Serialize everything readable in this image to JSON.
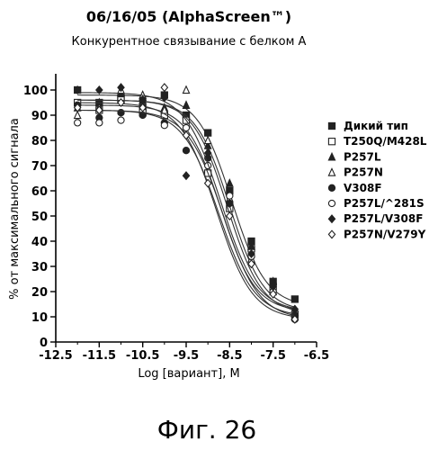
{
  "chart_data": {
    "type": "scatter",
    "title": "06/16/05 (AlphaScreen™)",
    "subtitle": "Конкурентное связывание с белком А",
    "xlabel": "Log [вариант], M",
    "ylabel": "% от максимального сигнала",
    "xlim": [
      -12.5,
      -6.5
    ],
    "ylim": [
      0,
      105
    ],
    "xticks": [
      -12.5,
      -11.5,
      -10.5,
      -9.5,
      -8.5,
      -7.5,
      -6.5
    ],
    "xtick_labels": [
      "-12.5",
      "-11.5",
      "-10.5",
      "-9.5",
      "-8.5",
      "-7.5",
      "-6.5"
    ],
    "yticks": [
      0,
      10,
      20,
      30,
      40,
      50,
      60,
      70,
      80,
      90,
      100
    ],
    "ytick_labels": [
      "0",
      "10",
      "20",
      "30",
      "40",
      "50",
      "60",
      "70",
      "80",
      "90",
      "100"
    ],
    "legend_position": "right",
    "caption": "Фиг. 26",
    "series": [
      {
        "name": "Дикий тип",
        "marker": "square-filled",
        "x": [
          -12,
          -11.5,
          -11,
          -10.5,
          -10,
          -9.5,
          -9,
          -8.5,
          -8,
          -7.5,
          -7
        ],
        "y": [
          100,
          95,
          97,
          93,
          98,
          90,
          83,
          60,
          40,
          24,
          17
        ],
        "fit": {
          "top": 98,
          "bottom": 14,
          "ec50": -8.45,
          "hill": 1.1
        }
      },
      {
        "name": "T250Q/M428L",
        "marker": "square-open",
        "x": [
          -12,
          -11.5,
          -11,
          -10.5,
          -10,
          -9.5,
          -9,
          -8.5,
          -8,
          -7.5,
          -7
        ],
        "y": [
          95,
          92,
          96,
          91,
          90,
          88,
          67,
          53,
          37,
          22,
          11
        ],
        "fit": {
          "top": 94,
          "bottom": 12,
          "ec50": -8.7,
          "hill": 1.1
        }
      },
      {
        "name": "P257L",
        "marker": "triangle-filled",
        "x": [
          -12,
          -11.5,
          -11,
          -10.5,
          -10,
          -9.5,
          -9,
          -8.5,
          -8,
          -7.5,
          -7
        ],
        "y": [
          93,
          95,
          99,
          96,
          93,
          94,
          78,
          63,
          38,
          24,
          12
        ],
        "fit": {
          "top": 96,
          "bottom": 12,
          "ec50": -8.5,
          "hill": 1.1
        }
      },
      {
        "name": "P257N",
        "marker": "triangle-open",
        "x": [
          -12,
          -11.5,
          -11,
          -10.5,
          -10,
          -9.5,
          -9,
          -8.5,
          -8,
          -7.5,
          -7
        ],
        "y": [
          90,
          93,
          100,
          98,
          92,
          100,
          80,
          57,
          33,
          20,
          10
        ],
        "fit": {
          "top": 96,
          "bottom": 11,
          "ec50": -8.55,
          "hill": 1.1
        }
      },
      {
        "name": "V308F",
        "marker": "circle-filled",
        "x": [
          -12,
          -11.5,
          -11,
          -10.5,
          -10,
          -9.5,
          -9,
          -8.5,
          -8,
          -7.5,
          -7
        ],
        "y": [
          94,
          89,
          91,
          90,
          87,
          76,
          73,
          55,
          34,
          20,
          10
        ],
        "fit": {
          "top": 92,
          "bottom": 10,
          "ec50": -8.75,
          "hill": 1.05
        }
      },
      {
        "name": "P257L/^281S",
        "marker": "circle-open",
        "x": [
          -12,
          -11.5,
          -11,
          -10.5,
          -10,
          -9.5,
          -9,
          -8.5,
          -8,
          -7.5,
          -7
        ],
        "y": [
          87,
          87,
          88,
          96,
          86,
          85,
          70,
          58,
          34,
          20,
          9
        ],
        "fit": {
          "top": 92,
          "bottom": 9,
          "ec50": -8.65,
          "hill": 1.05
        }
      },
      {
        "name": "P257L/V308F",
        "marker": "diamond-filled",
        "x": [
          -12,
          -11.5,
          -11,
          -10.5,
          -10,
          -9.5,
          -9,
          -8.5,
          -8,
          -7.5,
          -7
        ],
        "y": [
          100,
          100,
          101,
          96,
          97,
          66,
          75,
          55,
          35,
          22,
          13
        ],
        "fit": {
          "top": 99,
          "bottom": 12,
          "ec50": -8.7,
          "hill": 1.05
        }
      },
      {
        "name": "P257N/V279Y",
        "marker": "diamond-open",
        "x": [
          -12,
          -11.5,
          -11,
          -10.5,
          -10,
          -9.5,
          -9,
          -8.5,
          -8,
          -7.5,
          -7
        ],
        "y": [
          93,
          92,
          95,
          93,
          101,
          82,
          63,
          50,
          31,
          19,
          9
        ],
        "fit": {
          "top": 95,
          "bottom": 9,
          "ec50": -8.8,
          "hill": 1.05
        }
      }
    ]
  }
}
